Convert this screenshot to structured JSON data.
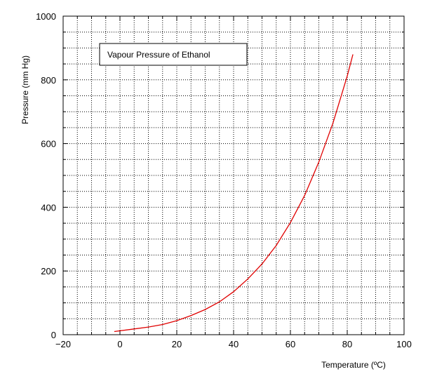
{
  "chart_data": {
    "type": "line",
    "title": "",
    "legend_label": "Vapour Pressure of Ethanol",
    "xlabel": "Temperature (ºC)",
    "ylabel": "Pressure (mm Hg)",
    "xlim": [
      -20,
      100
    ],
    "ylim": [
      0,
      1000
    ],
    "x_ticks": [
      -20,
      0,
      20,
      40,
      60,
      80,
      100
    ],
    "y_ticks": [
      0,
      200,
      400,
      600,
      800,
      1000
    ],
    "grid": true,
    "legend_position": "top-left",
    "line_color": "#e00000",
    "series": [
      {
        "x": [
          -2,
          5,
          10,
          15,
          20,
          25,
          30,
          35,
          40,
          45,
          50,
          55,
          60,
          65,
          70,
          75,
          80,
          82
        ],
        "y": [
          10,
          18,
          24,
          32,
          44,
          60,
          79,
          103,
          135,
          175,
          222,
          280,
          352,
          437,
          542,
          665,
          812,
          880
        ]
      }
    ]
  }
}
